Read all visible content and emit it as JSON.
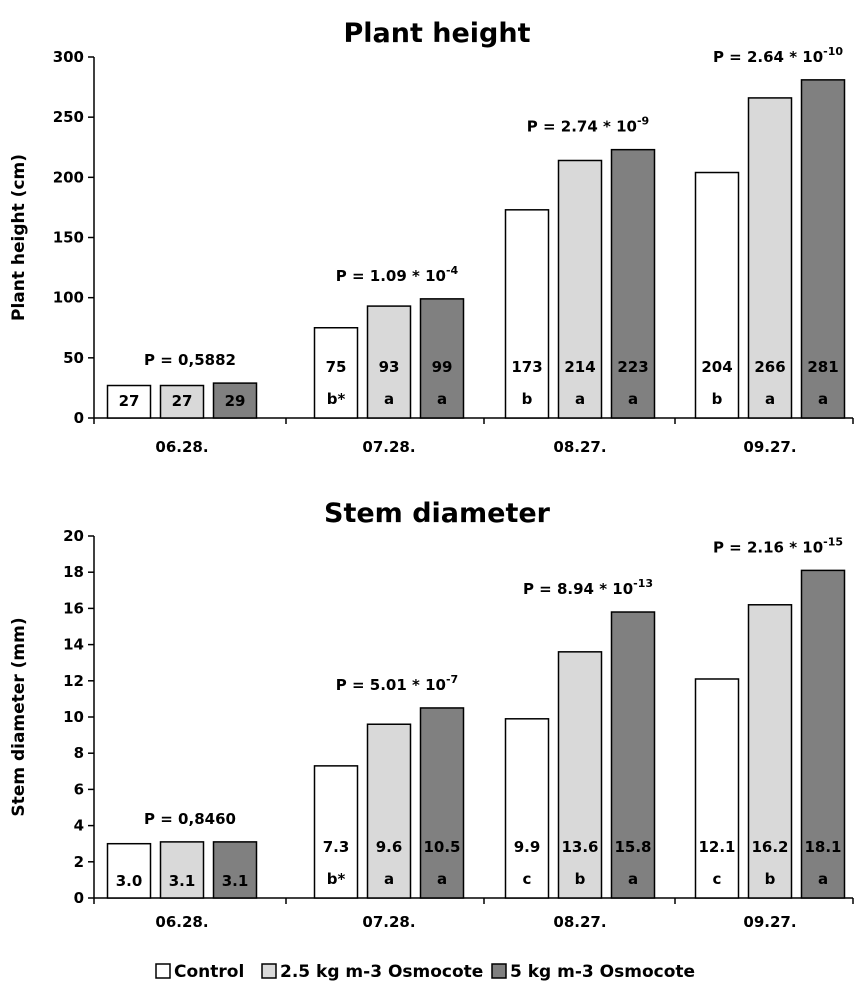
{
  "chart_data": [
    {
      "type": "bar",
      "title": "Plant height",
      "xlabel": "",
      "ylabel": "Plant height (cm)",
      "ylim": [
        0,
        300
      ],
      "yticks": [
        0,
        50,
        100,
        150,
        200,
        250,
        300
      ],
      "categories": [
        "06.28.",
        "07.28.",
        "08.27.",
        "09.27."
      ],
      "series": [
        {
          "name": "Control",
          "color": "#ffffff",
          "values": [
            27,
            75,
            173,
            204
          ],
          "labels": [
            "27",
            "75",
            "173",
            "204"
          ],
          "letters": [
            "",
            "b*",
            "b",
            "b"
          ]
        },
        {
          "name": "2.5 kg m-3 Osmocote",
          "color": "#d9d9d9",
          "values": [
            27,
            93,
            214,
            266
          ],
          "labels": [
            "27",
            "93",
            "214",
            "266"
          ],
          "letters": [
            "",
            "a",
            "a",
            "a"
          ]
        },
        {
          "name": "5 kg m-3 Osmocote",
          "color": "#808080",
          "values": [
            29,
            99,
            223,
            281
          ],
          "labels": [
            "29",
            "99",
            "223",
            "281"
          ],
          "letters": [
            "",
            "a",
            "a",
            "a"
          ]
        }
      ],
      "pvalues": [
        {
          "base": "P = 0,5882",
          "exp": ""
        },
        {
          "base": "P = 1.09 * 10",
          "exp": "-4"
        },
        {
          "base": "P = 2.74 * 10",
          "exp": "-9"
        },
        {
          "base": "P = 2.64 * 10",
          "exp": "-10"
        }
      ]
    },
    {
      "type": "bar",
      "title": "Stem diameter",
      "xlabel": "",
      "ylabel": "Stem diameter (mm)",
      "ylim": [
        0,
        20
      ],
      "yticks": [
        0,
        2,
        4,
        6,
        8,
        10,
        12,
        14,
        16,
        18,
        20
      ],
      "categories": [
        "06.28.",
        "07.28.",
        "08.27.",
        "09.27."
      ],
      "series": [
        {
          "name": "Control",
          "color": "#ffffff",
          "values": [
            3.0,
            7.3,
            9.9,
            12.1
          ],
          "labels": [
            "3.0",
            "7.3",
            "9.9",
            "12.1"
          ],
          "letters": [
            "",
            "b*",
            "c",
            "c"
          ]
        },
        {
          "name": "2.5 kg m-3 Osmocote",
          "color": "#d9d9d9",
          "values": [
            3.1,
            9.6,
            13.6,
            16.2
          ],
          "labels": [
            "3.1",
            "9.6",
            "13.6",
            "16.2"
          ],
          "letters": [
            "",
            "a",
            "b",
            "b"
          ]
        },
        {
          "name": "5 kg m-3 Osmocote",
          "color": "#808080",
          "values": [
            3.1,
            10.5,
            15.8,
            18.1
          ],
          "labels": [
            "3.1",
            "10.5",
            "15.8",
            "18.1"
          ],
          "letters": [
            "",
            "a",
            "a",
            "a"
          ]
        }
      ],
      "pvalues": [
        {
          "base": "P = 0,8460",
          "exp": ""
        },
        {
          "base": "P = 5.01 * 10",
          "exp": "-7"
        },
        {
          "base": "P = 8.94 * 10",
          "exp": "-13"
        },
        {
          "base": "P = 2.16 * 10",
          "exp": "-15"
        }
      ]
    }
  ],
  "legend": {
    "items": [
      {
        "label": "Control",
        "color": "#ffffff"
      },
      {
        "label": "2.5 kg m-3 Osmocote",
        "color": "#d9d9d9"
      },
      {
        "label": "5 kg m-3 Osmocote",
        "color": "#808080"
      }
    ]
  }
}
